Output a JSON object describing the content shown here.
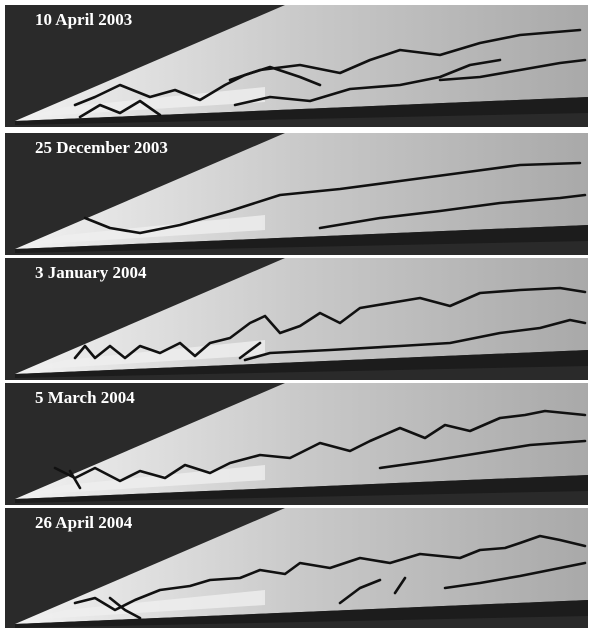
{
  "panels": [
    {
      "label": "10 April 2003"
    },
    {
      "label": "25 December 2003"
    },
    {
      "label": "3 January 2004"
    },
    {
      "label": "5 March 2004"
    },
    {
      "label": "26 April 2004"
    }
  ]
}
